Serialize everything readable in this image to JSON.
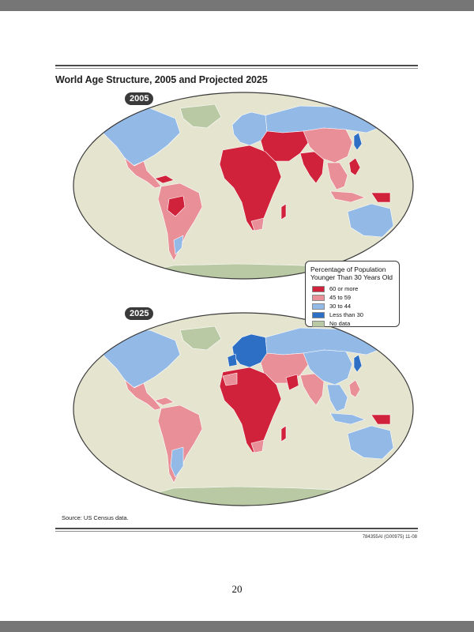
{
  "title": "World Age Structure, 2005 and Projected 2025",
  "legend": {
    "title_line1": "Percentage of Population",
    "title_line2": "Younger Than 30 Years Old",
    "items": [
      {
        "label": "60 or more",
        "color": "#d1223b"
      },
      {
        "label": "45 to 59",
        "color": "#e98f98"
      },
      {
        "label": "30 to 44",
        "color": "#93b9e6"
      },
      {
        "label": "Less than 30",
        "color": "#2d6fc4"
      },
      {
        "label": "No data",
        "color": "#b9c9a3"
      }
    ]
  },
  "maps": [
    {
      "year": "2005"
    },
    {
      "year": "2025"
    }
  ],
  "colors": {
    "ocean": "#e5e4cf",
    "border": "#ffffff",
    "frame": "#3a3a3a"
  },
  "source": "Source: US Census data.",
  "figure_code": "784355AI (G00975) 11-08",
  "page_number": "20"
}
